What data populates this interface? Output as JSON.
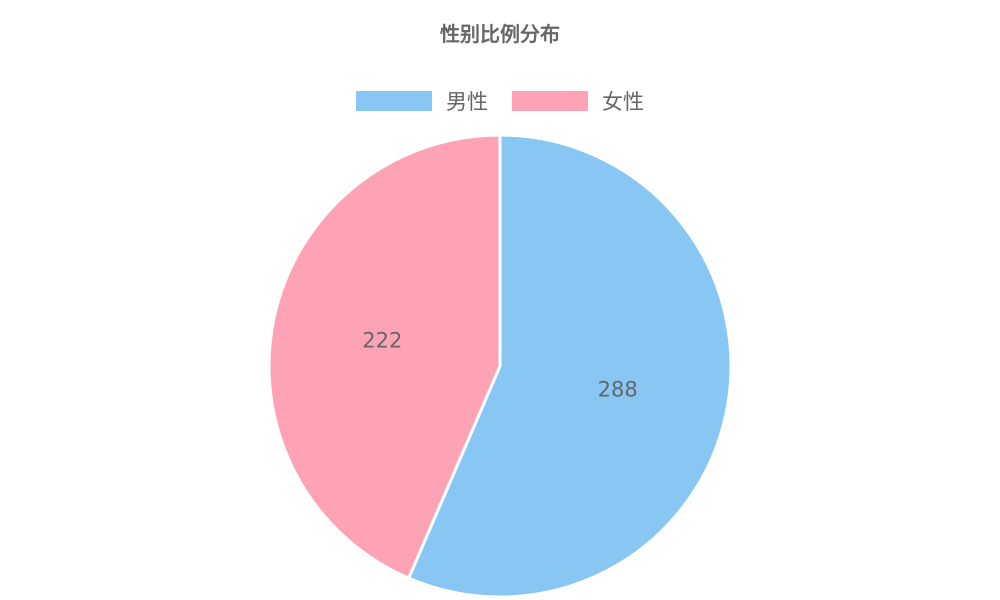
{
  "chart_data": {
    "type": "pie",
    "title": "性别比例分布",
    "legend_position": "top",
    "categories": [
      "男性",
      "女性"
    ],
    "values": [
      288,
      222
    ],
    "colors": [
      "#88c7f3",
      "#fea2b5"
    ],
    "labels": [
      "288",
      "222"
    ]
  }
}
